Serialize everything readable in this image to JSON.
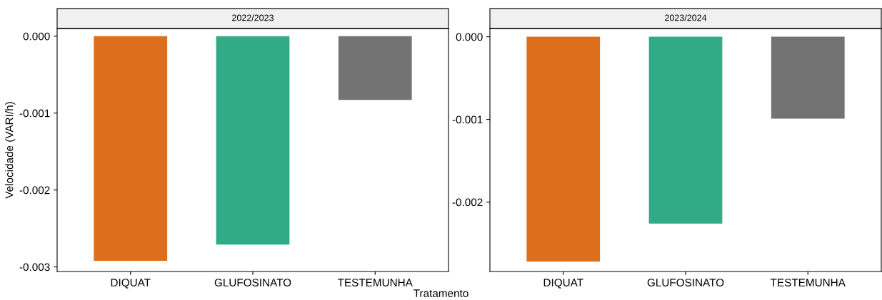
{
  "chart_data": [
    {
      "type": "bar",
      "title": "2022/2023",
      "ylabel": "Velocidade (VARI/h)",
      "xlabel": "Tratamento",
      "categories": [
        "DIQUAT",
        "GLUFOSINATO",
        "TESTEMUNHA"
      ],
      "values": [
        -0.00292,
        -0.00271,
        -0.00083
      ],
      "colors": [
        "#dd6e1b",
        "#31aa86",
        "#737373"
      ],
      "ylim": [
        -0.00306,
        0.0001
      ],
      "yticks": [
        {
          "value": 0,
          "label": "0.000"
        },
        {
          "value": -0.001,
          "label": "-0.001"
        },
        {
          "value": -0.002,
          "label": "-0.002"
        },
        {
          "value": -0.003,
          "label": "-0.003"
        }
      ],
      "grid": false,
      "legend": false
    },
    {
      "type": "bar",
      "title": "2023/2024",
      "categories": [
        "DIQUAT",
        "GLUFOSINATO",
        "TESTEMUNHA"
      ],
      "values": [
        -0.00272,
        -0.00226,
        -0.00099
      ],
      "colors": [
        "#dd6e1b",
        "#31aa86",
        "#737373"
      ],
      "ylim": [
        -0.00284,
        0.0001
      ],
      "yticks": [
        {
          "value": 0,
          "label": "0.000"
        },
        {
          "value": -0.001,
          "label": "-0.001"
        },
        {
          "value": -0.002,
          "label": "-0.002"
        }
      ],
      "grid": false,
      "legend": false
    }
  ]
}
